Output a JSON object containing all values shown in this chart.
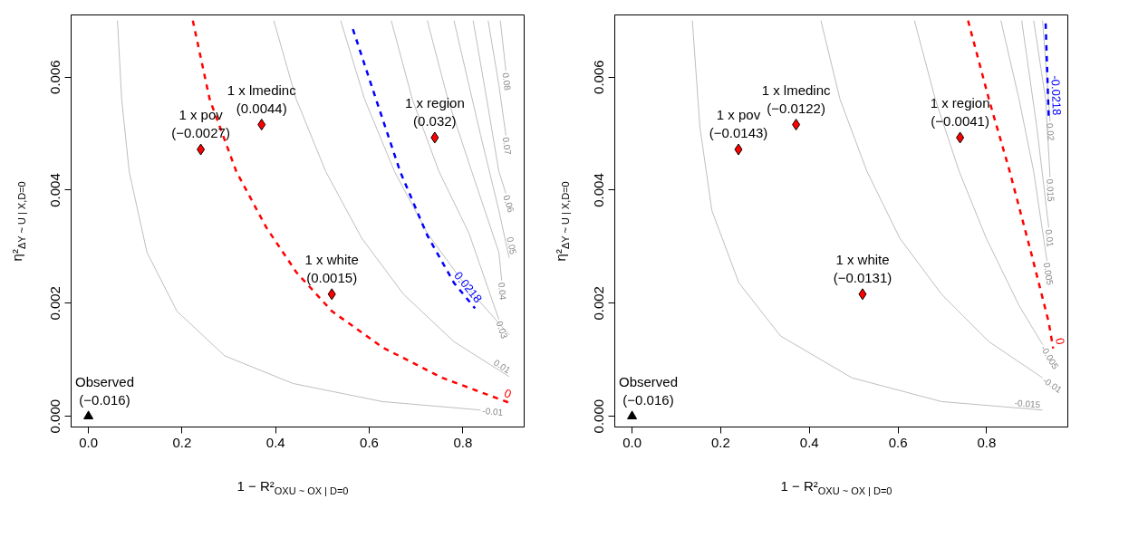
{
  "chart_data": [
    {
      "type": "line",
      "xlabel": "1 − R²$_{OXU ~ OX | D=0}$",
      "ylabel": "η²$_{ΔY ~ U | X,D=0}$",
      "xlim": [
        -0.037,
        0.931
      ],
      "ylim": [
        -0.00019,
        0.0071
      ],
      "xticks": [
        {
          "value": 0,
          "label": "0.0"
        },
        {
          "value": 0.2,
          "label": "0.2"
        },
        {
          "value": 0.4,
          "label": "0.4"
        },
        {
          "value": 0.6,
          "label": "0.6"
        },
        {
          "value": 0.8,
          "label": "0.8"
        }
      ],
      "yticks": [
        {
          "value": 0,
          "label": "0.000"
        },
        {
          "value": 0.002,
          "label": "0.002"
        },
        {
          "value": 0.004,
          "label": "0.004"
        },
        {
          "value": 0.006,
          "label": "0.006"
        }
      ],
      "grid": false,
      "legend": false,
      "series": [
        {
          "name": "-0.01",
          "color": "#bebebe",
          "type": "line",
          "line_style": "solid",
          "x": [
            0.062,
            0.071,
            0.087,
            0.125,
            0.189,
            0.291,
            0.437,
            0.628,
            0.838
          ],
          "values": [
            0.007,
            0.00561,
            0.00433,
            0.0029,
            0.00186,
            0.00107,
            0.00058,
            0.00026,
            0.00011
          ]
        },
        {
          "name": "0",
          "color": "#ff0000",
          "type": "line",
          "line_style": "dashed",
          "x": [
            0.223,
            0.259,
            0.316,
            0.38,
            0.444,
            0.52,
            0.628,
            0.756,
            0.902
          ],
          "values": [
            0.007,
            0.00561,
            0.00433,
            0.00334,
            0.00255,
            0.00186,
            0.00122,
            0.00068,
            0.00023
          ]
        },
        {
          "name": "0.01",
          "color": "#bebebe",
          "type": "line",
          "line_style": "solid",
          "x": [
            0.396,
            0.444,
            0.507,
            0.584,
            0.673,
            0.781,
            0.899
          ],
          "values": [
            0.007,
            0.00561,
            0.00433,
            0.00315,
            0.00216,
            0.00132,
            0.0007
          ]
        },
        {
          "color": "#bebebe",
          "type": "line",
          "line_style": "solid",
          "x": [
            0.539,
            0.59,
            0.654,
            0.724,
            0.806,
            0.899
          ],
          "values": [
            0.007,
            0.00561,
            0.00433,
            0.00324,
            0.00231,
            0.00144
          ]
        },
        {
          "name": "0.0218",
          "color": "#0000ff",
          "type": "line",
          "line_style": "dashed",
          "x": [
            0.565,
            0.616,
            0.666,
            0.724,
            0.781,
            0.826
          ],
          "values": [
            0.00685,
            0.00557,
            0.00433,
            0.0032,
            0.00236,
            0.00191
          ]
        },
        {
          "name": "0.03",
          "color": "#bebebe",
          "type": "line",
          "line_style": "solid",
          "x": [
            0.647,
            0.692,
            0.749,
            0.813,
            0.877
          ],
          "values": [
            0.007,
            0.00561,
            0.00433,
            0.00324,
            0.00171
          ]
        },
        {
          "name": "0.04",
          "color": "#bebebe",
          "type": "line",
          "line_style": "solid",
          "x": [
            0.724,
            0.768,
            0.819,
            0.877,
            0.883
          ],
          "values": [
            0.007,
            0.00561,
            0.00433,
            0.0029,
            0.0024
          ]
        },
        {
          "name": "0.05",
          "color": "#bebebe",
          "type": "line",
          "line_style": "solid",
          "x": [
            0.781,
            0.813,
            0.838,
            0.877,
            0.899
          ],
          "values": [
            0.007,
            0.00586,
            0.00497,
            0.00364,
            0.0028
          ]
        },
        {
          "name": "0.06",
          "color": "#bebebe",
          "type": "line",
          "line_style": "solid",
          "x": [
            0.822,
            0.851,
            0.877,
            0.892
          ],
          "values": [
            0.007,
            0.00561,
            0.00433,
            0.00394
          ]
        },
        {
          "name": "0.07",
          "color": "#bebebe",
          "type": "line",
          "line_style": "solid",
          "x": [
            0.854,
            0.877,
            0.892
          ],
          "values": [
            0.007,
            0.00586,
            0.00497
          ]
        },
        {
          "name": "0.08",
          "color": "#bebebe",
          "type": "line",
          "line_style": "solid",
          "x": [
            0.88,
            0.892
          ],
          "values": [
            0.007,
            0.00611
          ]
        },
        {
          "color": "#000000",
          "type": "scatter",
          "marker": "triangle",
          "x": [
            0
          ],
          "values": [
            0
          ]
        },
        {
          "color": "#ff0000",
          "type": "scatter",
          "marker": "diamond",
          "x": [
            0.24,
            0.37,
            0.52,
            0.74
          ],
          "values": [
            0.00472,
            0.00516,
            0.00216,
            0.00493
          ]
        }
      ],
      "annotations": [
        {
          "text": "Observed\n(−0.016)",
          "x": 0,
          "y": 0
        },
        {
          "text": "1 x pov\n(−0.0027)",
          "x": 0.24,
          "y": 0.00472
        },
        {
          "text": "1 x lmedinc\n(0.0044)",
          "x": 0.37,
          "y": 0.00516
        },
        {
          "text": "1 x white\n(0.0015)",
          "x": 0.52,
          "y": 0.00216
        },
        {
          "text": "1 x region\n(0.032)",
          "x": 0.74,
          "y": 0.00493
        }
      ]
    },
    {
      "type": "line",
      "xlabel": "1 − R²$_{OXU ~ OX | D=0}$",
      "ylabel": "η²$_{ΔY ~ U | X,D=0}$",
      "xlim": [
        -0.039,
        0.983
      ],
      "ylim": [
        -0.00019,
        0.0071
      ],
      "xticks": [
        {
          "value": 0,
          "label": "0.0"
        },
        {
          "value": 0.2,
          "label": "0.2"
        },
        {
          "value": 0.4,
          "label": "0.4"
        },
        {
          "value": 0.6,
          "label": "0.6"
        },
        {
          "value": 0.8,
          "label": "0.8"
        }
      ],
      "yticks": [
        {
          "value": 0,
          "label": "0.000"
        },
        {
          "value": 0.002,
          "label": "0.002"
        },
        {
          "value": 0.004,
          "label": "0.004"
        },
        {
          "value": 0.006,
          "label": "0.006"
        }
      ],
      "grid": false,
      "legend": false,
      "series": [
        {
          "name": "-0.015",
          "color": "#bebebe",
          "type": "line",
          "line_style": "solid",
          "x": [
            0.136,
            0.153,
            0.18,
            0.241,
            0.335,
            0.496,
            0.698,
            0.926
          ],
          "values": [
            0.007,
            0.00512,
            0.00364,
            0.00236,
            0.00142,
            0.00068,
            0.00026,
            0.00011
          ]
        },
        {
          "name": "-0.01",
          "color": "#bebebe",
          "type": "line",
          "line_style": "solid",
          "x": [
            0.426,
            0.469,
            0.53,
            0.604,
            0.698,
            0.805,
            0.926
          ],
          "values": [
            0.007,
            0.00561,
            0.00433,
            0.00315,
            0.00216,
            0.00132,
            0.00068
          ]
        },
        {
          "name": "-0.005",
          "color": "#bebebe",
          "type": "line",
          "line_style": "solid",
          "x": [
            0.637,
            0.684,
            0.738,
            0.799,
            0.873,
            0.926
          ],
          "values": [
            0.007,
            0.00561,
            0.00433,
            0.00315,
            0.00196,
            0.00127
          ]
        },
        {
          "name": "0",
          "color": "#ff0000",
          "type": "line",
          "line_style": "dashed",
          "x": [
            0.758,
            0.805,
            0.852,
            0.9,
            0.94,
            0.95
          ],
          "values": [
            0.007,
            0.00561,
            0.00433,
            0.0029,
            0.00166,
            0.0012
          ]
        },
        {
          "name": "0.005",
          "color": "#bebebe",
          "type": "line",
          "line_style": "solid",
          "x": [
            0.832,
            0.873,
            0.906,
            0.936
          ],
          "values": [
            0.007,
            0.00561,
            0.00433,
            0.00275
          ]
        },
        {
          "name": "0.01",
          "color": "#bebebe",
          "type": "line",
          "line_style": "solid",
          "x": [
            0.879,
            0.913,
            0.94
          ],
          "values": [
            0.007,
            0.00512,
            0.00334
          ]
        },
        {
          "name": "0.015",
          "color": "#bebebe",
          "type": "line",
          "line_style": "solid",
          "x": [
            0.906,
            0.933,
            0.943
          ],
          "values": [
            0.007,
            0.00561,
            0.00423
          ]
        },
        {
          "name": "0.02",
          "color": "#bebebe",
          "type": "line",
          "line_style": "solid",
          "x": [
            0.926,
            0.943
          ],
          "values": [
            0.007,
            0.00522
          ]
        },
        {
          "name": "-0.0218",
          "color": "#0000ff",
          "type": "line",
          "line_style": "dashed",
          "x": [
            0.933,
            0.94
          ],
          "values": [
            0.00695,
            0.00527
          ]
        },
        {
          "color": "#000000",
          "type": "scatter",
          "marker": "triangle",
          "x": [
            0
          ],
          "values": [
            0
          ]
        },
        {
          "color": "#ff0000",
          "type": "scatter",
          "marker": "diamond",
          "x": [
            0.24,
            0.37,
            0.52,
            0.74
          ],
          "values": [
            0.00472,
            0.00516,
            0.00216,
            0.00493
          ]
        }
      ],
      "annotations": [
        {
          "text": "Observed\n(−0.016)",
          "x": 0,
          "y": 0
        },
        {
          "text": "1 x pov\n(−0.0143)",
          "x": 0.24,
          "y": 0.00472
        },
        {
          "text": "1 x lmedinc\n(−0.0122)",
          "x": 0.37,
          "y": 0.00516
        },
        {
          "text": "1 x white\n(−0.0131)",
          "x": 0.52,
          "y": 0.00216
        },
        {
          "text": "1 x region\n(−0.0041)",
          "x": 0.74,
          "y": 0.00493
        }
      ]
    }
  ]
}
